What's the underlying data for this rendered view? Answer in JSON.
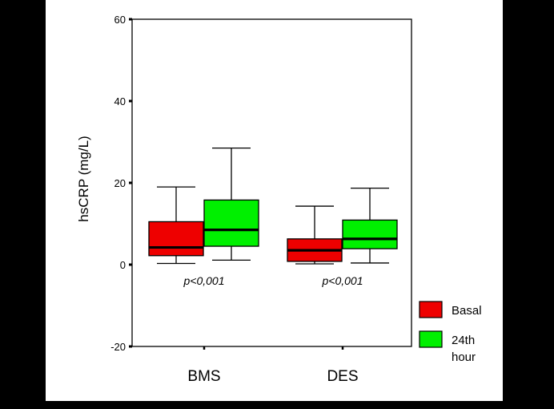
{
  "chart_data": {
    "type": "boxplot",
    "ylabel": "hsCRP (mg/L)",
    "xlabel": "",
    "ylim": [
      -20,
      60
    ],
    "yticks": [
      -20,
      0,
      20,
      40,
      60
    ],
    "yticks_label": [
      "-20",
      "0",
      "20",
      "40",
      "60"
    ],
    "categories": [
      "BMS",
      "DES"
    ],
    "grid": false,
    "legend_position": "right",
    "series": [
      {
        "name": "Basal",
        "color": "#ee0000",
        "boxes": [
          {
            "min": 0.3,
            "q1": 2.2,
            "median": 4.2,
            "q3": 10.5,
            "max": 19.0
          },
          {
            "min": 0.2,
            "q1": 0.8,
            "median": 3.5,
            "q3": 6.3,
            "max": 14.3
          }
        ]
      },
      {
        "name": "24th hour",
        "legend_lines": [
          "24th",
          "hour"
        ],
        "color": "#00f000",
        "boxes": [
          {
            "min": 1.1,
            "q1": 4.5,
            "median": 8.5,
            "q3": 15.8,
            "max": 28.5
          },
          {
            "min": 0.4,
            "q1": 3.9,
            "median": 6.3,
            "q3": 10.9,
            "max": 18.7
          }
        ]
      }
    ],
    "annotations": [
      "p<0,001",
      "p<0,001"
    ]
  }
}
